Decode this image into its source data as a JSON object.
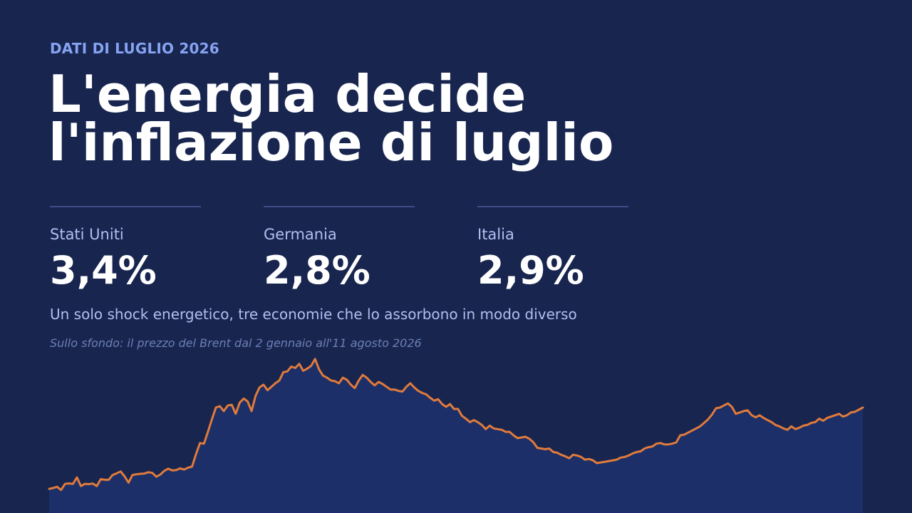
{
  "header": {
    "kicker": "DATI DI LUGLIO 2026",
    "title_line_1": "L'energia decide",
    "title_line_2": "l'inflazione di luglio"
  },
  "stats": [
    {
      "country": "Stati Uniti",
      "value": "3,4%"
    },
    {
      "country": "Germania",
      "value": "2,8%"
    },
    {
      "country": "Italia",
      "value": "2,9%"
    }
  ],
  "subtitle": "Un solo shock energetico, tre economie che lo assorbono in modo diverso",
  "chart_note": "Sullo sfondo: il prezzo del Brent dal 2 gennaio all'11 agosto 2026",
  "colors": {
    "background": "#18254f",
    "area_fill": "#1c2f68",
    "line": "#e07b3c",
    "accent_text": "#86a3f2"
  },
  "chart_data": {
    "type": "area",
    "title": "",
    "xlabel": "",
    "ylabel": "",
    "series": [
      {
        "x_start": "2026-01-02",
        "x_end": "2026-08-11",
        "values": [
          2.0,
          2.6,
          3.5,
          1.2,
          5.6,
          5.9,
          5.6,
          10.2,
          4.0,
          5.6,
          5.4,
          5.8,
          4.0,
          9.0,
          8.5,
          8.5,
          12.0,
          13.2,
          14.5,
          11.0,
          6.5,
          12.0,
          12.5,
          12.8,
          13.0,
          14.0,
          13.5,
          10.7,
          12.3,
          15.0,
          16.5,
          15.3,
          15.5,
          16.7,
          15.9,
          17.3,
          18.0,
          27.0,
          35.0,
          34.5,
          43.0,
          52.0,
          60.5,
          61.5,
          58.0,
          62.0,
          62.5,
          56.0,
          64.0,
          67.0,
          65.0,
          58.0,
          69.0,
          75.0,
          77.0,
          73.0,
          75.5,
          78.0,
          80.0,
          86.0,
          86.5,
          90.0,
          89.0,
          92.0,
          87.0,
          88.5,
          90.5,
          95.5,
          88.0,
          83.5,
          82.0,
          80.0,
          79.5,
          78.0,
          82.0,
          80.5,
          77.0,
          74.5,
          80.0,
          84.0,
          82.0,
          79.0,
          76.5,
          79.0,
          77.5,
          75.5,
          73.5,
          73.5,
          72.5,
          72.0,
          75.5,
          78.0,
          75.0,
          72.5,
          71.0,
          70.0,
          67.5,
          65.5,
          66.5,
          63.0,
          61.0,
          63.0,
          59.5,
          59.5,
          54.5,
          52.5,
          50.0,
          51.5,
          50.0,
          48.0,
          45.0,
          47.5,
          45.5,
          45.0,
          44.5,
          43.0,
          43.0,
          40.5,
          38.5,
          39.0,
          39.5,
          38.0,
          35.5,
          31.5,
          31.0,
          30.5,
          31.0,
          28.5,
          28.0,
          26.5,
          25.5,
          24.0,
          26.5,
          26.0,
          25.0,
          23.0,
          23.5,
          22.5,
          20.5,
          21.0,
          21.5,
          22.0,
          22.5,
          23.0,
          24.5,
          25.0,
          26.0,
          27.5,
          28.5,
          29.0,
          31.0,
          32.0,
          32.5,
          34.5,
          35.0,
          34.0,
          34.0,
          34.5,
          35.5,
          40.5,
          41.0,
          42.5,
          44.0,
          45.5,
          47.0,
          49.5,
          52.0,
          55.5,
          60.0,
          60.5,
          62.0,
          63.5,
          61.0,
          56.0,
          57.0,
          58.0,
          58.5,
          55.0,
          53.5,
          55.0,
          53.0,
          51.5,
          50.0,
          48.0,
          47.0,
          45.5,
          44.5,
          47.0,
          45.0,
          46.0,
          47.5,
          48.0,
          49.5,
          50.0,
          52.5,
          51.0,
          53.0,
          54.0,
          55.0,
          56.0,
          54.0,
          55.0,
          57.0,
          57.5,
          59.0,
          60.5
        ]
      }
    ],
    "grid": false,
    "legend": "none"
  }
}
